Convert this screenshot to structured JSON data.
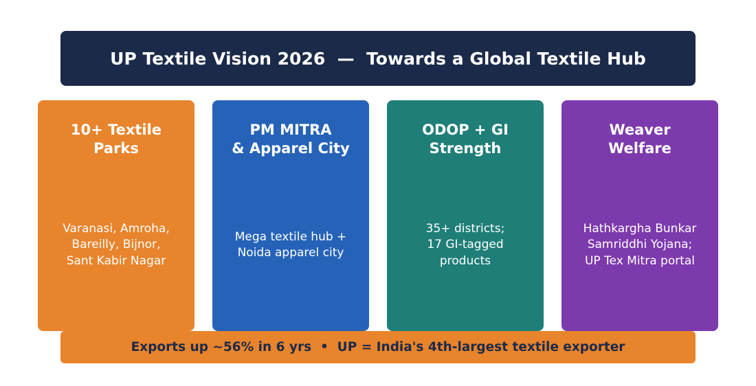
{
  "header": {
    "title": "UP Textile Vision 2026  —  Towards a Global Textile Hub",
    "background": "#1c2a4a",
    "text_color": "#ffffff"
  },
  "cards": [
    {
      "title": "10+ Textile\nParks",
      "body": "Varanasi, Amroha,\nBareilly, Bijnor,\nSant Kabir Nagar",
      "color": "#e8842c"
    },
    {
      "title": "PM MITRA\n& Apparel City",
      "body": "Mega textile hub +\nNoida apparel city",
      "color": "#2663b8"
    },
    {
      "title": "ODOP + GI\nStrength",
      "body": "35+ districts;\n17 GI-tagged\nproducts",
      "color": "#1f7f78"
    },
    {
      "title": "Weaver\nWelfare",
      "body": "Hathkargha Bunkar\nSamriddhi Yojana;\nUP Tex Mitra portal",
      "color": "#7d3aad"
    }
  ],
  "footer": {
    "text": "Exports up ~56% in 6 yrs  •  UP = India's 4th-largest textile exporter",
    "background": "#e8842c",
    "text_color": "#1c2a4a"
  }
}
